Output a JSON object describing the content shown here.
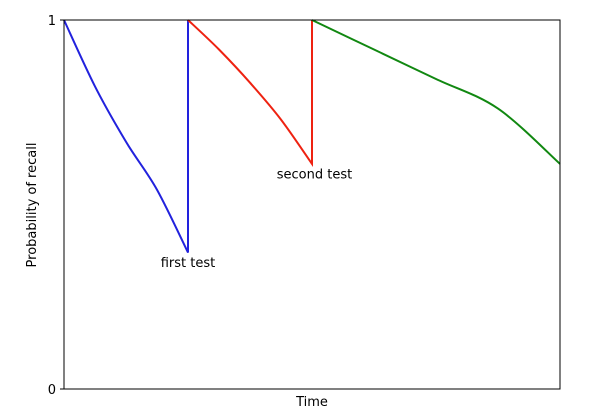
{
  "chart_data": {
    "type": "line",
    "xlabel": "Time",
    "ylabel": "Probability of recall",
    "xlim": [
      0,
      4
    ],
    "ylim": [
      0,
      1
    ],
    "y_ticks": [
      {
        "value": 0,
        "label": "0"
      },
      {
        "value": 1,
        "label": "1"
      }
    ],
    "x_ticks": [],
    "grid": false,
    "series": [
      {
        "color": "#2222dd",
        "points": [
          [
            0,
            1.0
          ],
          [
            0.25,
            0.82
          ],
          [
            0.5,
            0.67
          ],
          [
            0.75,
            0.54
          ],
          [
            1.0,
            0.37
          ]
        ],
        "jump_to": [
          1.0,
          1.0
        ]
      },
      {
        "color": "#ee2211",
        "points": [
          [
            1.0,
            1.0
          ],
          [
            1.25,
            0.92
          ],
          [
            1.5,
            0.83
          ],
          [
            1.75,
            0.73
          ],
          [
            2.0,
            0.61
          ]
        ],
        "jump_to": [
          2.0,
          1.0
        ]
      },
      {
        "color": "#118811",
        "points": [
          [
            2.0,
            1.0
          ],
          [
            2.5,
            0.92
          ],
          [
            3.0,
            0.84
          ],
          [
            3.5,
            0.76
          ],
          [
            4.0,
            0.61
          ]
        ]
      }
    ],
    "annotations": [
      {
        "text": "first test",
        "x": 1.0,
        "y": 0.33
      },
      {
        "text": "second test",
        "x": 2.02,
        "y": 0.57
      }
    ]
  }
}
